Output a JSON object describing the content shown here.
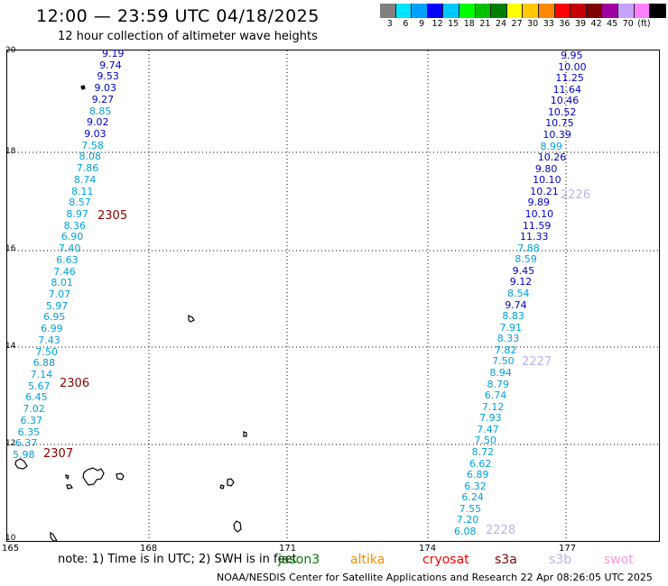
{
  "header": {
    "title": "12:00 — 23:59 UTC 04/18/2025",
    "subtitle": "12 hour collection of altimeter wave heights"
  },
  "legend_scale": {
    "colors": [
      "#808080",
      "#00e5ff",
      "#00a0ff",
      "#0000ff",
      "#00c8ff",
      "#00ff00",
      "#00c000",
      "#008000",
      "#ffff00",
      "#ffc800",
      "#ff8800",
      "#ff0000",
      "#c80000",
      "#800000",
      "#a000a0",
      "#c8a0ff",
      "#ff80ff",
      "#000000"
    ],
    "labels": [
      "3",
      "6",
      "9",
      "12",
      "15",
      "18",
      "21",
      "24",
      "27",
      "30",
      "33",
      "36",
      "39",
      "42",
      "45",
      "70",
      "(ft)"
    ]
  },
  "axes": {
    "y_ticks": [
      "20",
      "18",
      "16",
      "14",
      "12",
      "10"
    ],
    "x_ticks": [
      "165",
      "168",
      "171",
      "174",
      "177"
    ]
  },
  "tracks": {
    "left": [
      {
        "v": "9.19",
        "c": "#0000cc"
      },
      {
        "v": "9.74",
        "c": "#0000cc"
      },
      {
        "v": "9.53",
        "c": "#0000cc"
      },
      {
        "v": "9.03",
        "c": "#0000cc"
      },
      {
        "v": "9.27",
        "c": "#0000cc"
      },
      {
        "v": "8.85",
        "c": "#00a0e0"
      },
      {
        "v": "9.02",
        "c": "#0000cc"
      },
      {
        "v": "9.03",
        "c": "#0000cc"
      },
      {
        "v": "7.58",
        "c": "#00a0e0"
      },
      {
        "v": "8.08",
        "c": "#00a0e0"
      },
      {
        "v": "7.86",
        "c": "#00a0e0"
      },
      {
        "v": "8.74",
        "c": "#00a0e0"
      },
      {
        "v": "8.11",
        "c": "#00a0e0"
      },
      {
        "v": "8.57",
        "c": "#00a0e0"
      },
      {
        "v": "8.97",
        "c": "#00a0e0"
      },
      {
        "v": "8.36",
        "c": "#00a0e0"
      },
      {
        "v": "6.90",
        "c": "#00a0e0"
      },
      {
        "v": "7.40",
        "c": "#00a0e0"
      },
      {
        "v": "6.63",
        "c": "#00a0e0"
      },
      {
        "v": "7.46",
        "c": "#00a0e0"
      },
      {
        "v": "8.01",
        "c": "#00a0e0"
      },
      {
        "v": "7.07",
        "c": "#00a0e0"
      },
      {
        "v": "5.97",
        "c": "#00a0e0"
      },
      {
        "v": "6.95",
        "c": "#00a0e0"
      },
      {
        "v": "6.99",
        "c": "#00a0e0"
      },
      {
        "v": "7.43",
        "c": "#00a0e0"
      },
      {
        "v": "7.50",
        "c": "#00a0e0"
      },
      {
        "v": "6.88",
        "c": "#00a0e0"
      },
      {
        "v": "7.14",
        "c": "#00a0e0"
      },
      {
        "v": "5.67",
        "c": "#00a0e0"
      },
      {
        "v": "6.45",
        "c": "#00a0e0"
      },
      {
        "v": "7.02",
        "c": "#00a0e0"
      },
      {
        "v": "6.37",
        "c": "#00a0e0"
      },
      {
        "v": "6.35",
        "c": "#00a0e0"
      },
      {
        "v": "6.37",
        "c": "#00a0e0"
      },
      {
        "v": "5.98",
        "c": "#00a0e0"
      }
    ],
    "right": [
      {
        "v": "9.95",
        "c": "#0000cc"
      },
      {
        "v": "10.00",
        "c": "#0000cc"
      },
      {
        "v": "11.25",
        "c": "#0000cc"
      },
      {
        "v": "11.64",
        "c": "#0000cc"
      },
      {
        "v": "10.46",
        "c": "#0000cc"
      },
      {
        "v": "10.52",
        "c": "#0000cc"
      },
      {
        "v": "10.75",
        "c": "#0000cc"
      },
      {
        "v": "10.39",
        "c": "#0000cc"
      },
      {
        "v": "8.99",
        "c": "#00a0e0"
      },
      {
        "v": "10.26",
        "c": "#0000cc"
      },
      {
        "v": "9.80",
        "c": "#0000cc"
      },
      {
        "v": "10.10",
        "c": "#0000cc"
      },
      {
        "v": "10.21",
        "c": "#0000cc"
      },
      {
        "v": "9.89",
        "c": "#0000cc"
      },
      {
        "v": "10.10",
        "c": "#0000cc"
      },
      {
        "v": "11.59",
        "c": "#0000cc"
      },
      {
        "v": "11.33",
        "c": "#0000cc"
      },
      {
        "v": "7.88",
        "c": "#00a0e0"
      },
      {
        "v": "8.59",
        "c": "#00a0e0"
      },
      {
        "v": "9.45",
        "c": "#0000cc"
      },
      {
        "v": "9.12",
        "c": "#0000cc"
      },
      {
        "v": "8.54",
        "c": "#00a0e0"
      },
      {
        "v": "9.74",
        "c": "#0000cc"
      },
      {
        "v": "8.83",
        "c": "#00a0e0"
      },
      {
        "v": "7.91",
        "c": "#00a0e0"
      },
      {
        "v": "8.33",
        "c": "#00a0e0"
      },
      {
        "v": "7.82",
        "c": "#00a0e0"
      },
      {
        "v": "7.50",
        "c": "#00a0e0"
      },
      {
        "v": "8.94",
        "c": "#00a0e0"
      },
      {
        "v": "8.79",
        "c": "#00a0e0"
      },
      {
        "v": "6.74",
        "c": "#00a0e0"
      },
      {
        "v": "7.12",
        "c": "#00a0e0"
      },
      {
        "v": "7.93",
        "c": "#00a0e0"
      },
      {
        "v": "7.47",
        "c": "#00a0e0"
      },
      {
        "v": "7.50",
        "c": "#00a0e0"
      },
      {
        "v": "8.72",
        "c": "#00a0e0"
      },
      {
        "v": "6.62",
        "c": "#00a0e0"
      },
      {
        "v": "6.89",
        "c": "#00a0e0"
      },
      {
        "v": "6.32",
        "c": "#00a0e0"
      },
      {
        "v": "6.24",
        "c": "#00a0e0"
      },
      {
        "v": "7.55",
        "c": "#00a0e0"
      },
      {
        "v": "7.20",
        "c": "#00a0e0"
      },
      {
        "v": "6.08",
        "c": "#00a0e0"
      }
    ]
  },
  "time_markers": {
    "left": [
      "2305",
      "2306",
      "2307"
    ],
    "right": [
      "2226",
      "2227",
      "2228"
    ],
    "left_color": "#8b0000",
    "right_color": "#c0b0f0"
  },
  "footer": {
    "note": "note:  1) Time is in UTC; 2) SWH is in feet",
    "satellites": [
      {
        "name": "jason3",
        "color": "#008000"
      },
      {
        "name": "altika",
        "color": "#ff8c00"
      },
      {
        "name": "cryosat",
        "color": "#ff0000"
      },
      {
        "name": "s3a",
        "color": "#8b0000"
      },
      {
        "name": "s3b",
        "color": "#c0b0f0"
      },
      {
        "name": "swot",
        "color": "#ff99dd"
      }
    ],
    "credit": "NOAA/NESDIS Center for Satellite Applications and Research     22 Apr 08:26:05 UTC 2025"
  }
}
